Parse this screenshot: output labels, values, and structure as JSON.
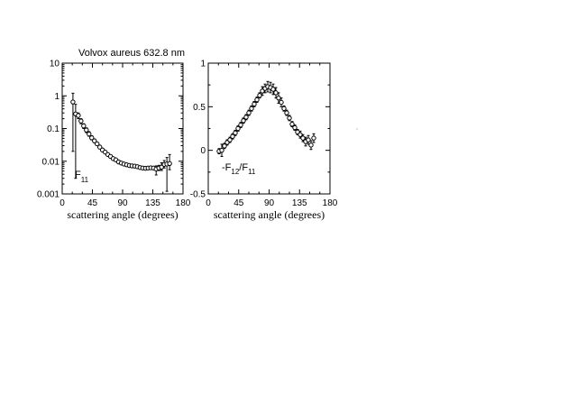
{
  "figure": {
    "title": "Volvox aureus  632.8 nm"
  },
  "chart_data": [
    {
      "type": "scatter",
      "panel_label": "F11",
      "panel_label_main": "F",
      "panel_label_sub": "11",
      "xlabel": "scattering angle (degrees)",
      "ylabel": "",
      "xlim": [
        0,
        180
      ],
      "ylim": [
        0.001,
        10
      ],
      "yscale": "log",
      "xticks": [
        0,
        45,
        90,
        135,
        180
      ],
      "xtick_labels": [
        "0",
        "45",
        "90",
        "135",
        "180"
      ],
      "yticks": [
        0.001,
        0.01,
        0.1,
        1,
        10
      ],
      "ytick_labels": [
        "0.001",
        "0.01",
        "0.1",
        "1",
        "10"
      ],
      "grid": false,
      "series": [
        {
          "x": [
            16,
            20,
            24,
            28,
            32,
            36,
            40,
            44,
            48,
            52,
            56,
            60,
            64,
            68,
            72,
            76,
            80,
            84,
            88,
            92,
            96,
            100,
            104,
            108,
            112,
            116,
            120,
            124,
            128,
            132,
            136,
            140,
            144,
            148,
            152,
            156,
            160
          ],
          "y": [
            0.65,
            0.28,
            0.25,
            0.17,
            0.12,
            0.09,
            0.068,
            0.052,
            0.042,
            0.034,
            0.027,
            0.022,
            0.019,
            0.016,
            0.014,
            0.012,
            0.011,
            0.0095,
            0.0088,
            0.0082,
            0.0078,
            0.0074,
            0.0072,
            0.0071,
            0.0068,
            0.0064,
            0.0062,
            0.0061,
            0.0062,
            0.0063,
            0.0062,
            0.0058,
            0.0062,
            0.0066,
            0.008,
            0.0082,
            0.0085
          ],
          "err_low": [
            0.02,
            0.003,
            0.2,
            0.14,
            0.1,
            0.075,
            0.058,
            0.045,
            0.037,
            0.03,
            0.024,
            0.02,
            0.017,
            0.0145,
            0.0128,
            0.011,
            0.0101,
            0.0088,
            0.0082,
            0.0076,
            0.0072,
            0.0069,
            0.0067,
            0.0066,
            0.0063,
            0.006,
            0.0058,
            0.0057,
            0.0058,
            0.0059,
            0.0058,
            0.0038,
            0.0052,
            0.0052,
            0.0062,
            0.0012,
            0.0055
          ],
          "err_high": [
            1.2,
            0.55,
            0.3,
            0.2,
            0.14,
            0.105,
            0.08,
            0.06,
            0.048,
            0.038,
            0.031,
            0.025,
            0.021,
            0.0175,
            0.0152,
            0.013,
            0.0119,
            0.0102,
            0.0094,
            0.0088,
            0.0084,
            0.0079,
            0.0077,
            0.0076,
            0.0073,
            0.0068,
            0.0066,
            0.0065,
            0.0066,
            0.0067,
            0.0066,
            0.0072,
            0.0075,
            0.009,
            0.0105,
            0.013,
            0.016
          ]
        }
      ]
    },
    {
      "type": "scatter",
      "panel_label": "-F12/F11",
      "panel_label_parts": [
        "-F",
        "12",
        "/F",
        "11"
      ],
      "xlabel": "scattering angle (degrees)",
      "ylabel": "",
      "xlim": [
        0,
        180
      ],
      "ylim": [
        -0.5,
        1
      ],
      "yscale": "linear",
      "xticks": [
        0,
        45,
        90,
        135,
        180
      ],
      "xtick_labels": [
        "0",
        "45",
        "90",
        "135",
        "180"
      ],
      "yticks": [
        -0.5,
        0,
        0.5,
        1
      ],
      "ytick_labels": [
        "-0.5",
        "0",
        "0.5",
        "1"
      ],
      "grid": false,
      "series": [
        {
          "x": [
            16,
            20,
            24,
            28,
            32,
            36,
            40,
            44,
            48,
            52,
            56,
            60,
            64,
            68,
            72,
            76,
            80,
            84,
            88,
            92,
            96,
            100,
            104,
            108,
            112,
            116,
            120,
            124,
            128,
            132,
            136,
            140,
            144,
            148,
            152,
            156
          ],
          "y": [
            -0.01,
            0.0,
            0.05,
            0.09,
            0.12,
            0.16,
            0.2,
            0.25,
            0.29,
            0.34,
            0.38,
            0.43,
            0.48,
            0.53,
            0.58,
            0.63,
            0.68,
            0.71,
            0.73,
            0.72,
            0.7,
            0.66,
            0.6,
            0.55,
            0.48,
            0.43,
            0.37,
            0.3,
            0.26,
            0.21,
            0.18,
            0.14,
            0.1,
            0.12,
            0.06,
            0.14
          ],
          "err": [
            0.03,
            0.07,
            0.03,
            0.03,
            0.03,
            0.03,
            0.03,
            0.03,
            0.03,
            0.03,
            0.03,
            0.03,
            0.03,
            0.03,
            0.03,
            0.03,
            0.05,
            0.05,
            0.06,
            0.06,
            0.06,
            0.06,
            0.06,
            0.05,
            0.03,
            0.03,
            0.03,
            0.03,
            0.03,
            0.03,
            0.04,
            0.04,
            0.05,
            0.05,
            0.05,
            0.05
          ]
        }
      ]
    }
  ]
}
